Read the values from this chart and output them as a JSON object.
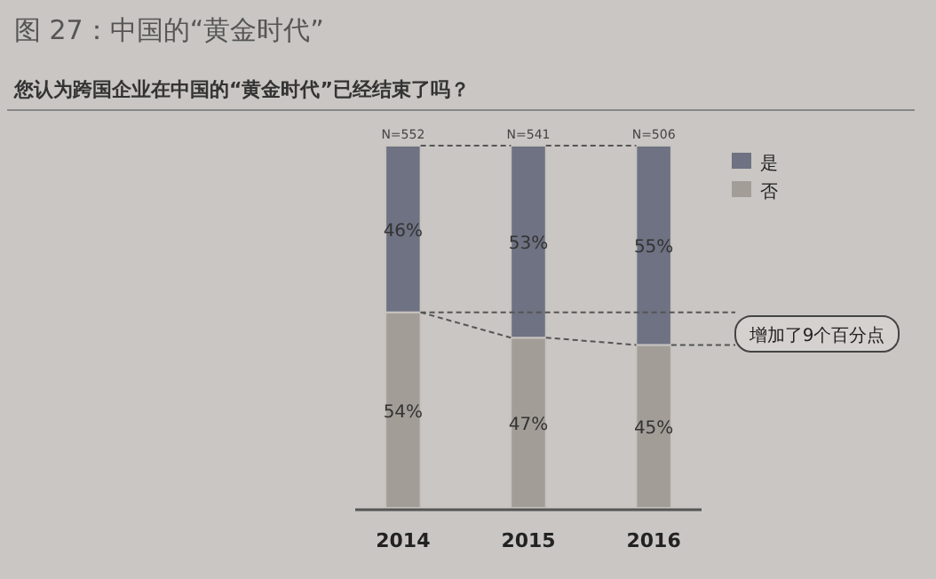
{
  "chart_data": {
    "type": "bar",
    "title": "图 27：中国的“黄金时代”",
    "subtitle": "您认为跨国企业在中国的“黄金时代”已经结束了吗？",
    "categories": [
      "2014",
      "2015",
      "2016"
    ],
    "stacked": true,
    "legend": "top right",
    "series": [
      {
        "name": "否",
        "color": "#a39d98",
        "values": [
          54,
          47,
          45
        ],
        "value_labels": [
          "54%",
          "47%",
          "45%"
        ]
      },
      {
        "name": "是",
        "color": "#6e7282",
        "values": [
          46,
          53,
          55
        ],
        "value_labels": [
          "46%",
          "53%",
          "55%"
        ]
      }
    ],
    "ref_lines": [
      {
        "axis": "y",
        "value": 54,
        "line_style": "dashed",
        "color": "#555555"
      },
      {
        "axis": "y",
        "value": 45,
        "line_style": "dashed",
        "color": "#555555"
      }
    ],
    "annotations": [
      {
        "text": "N=552",
        "x": "2014",
        "y": 100
      },
      {
        "text": "N=541",
        "x": "2015",
        "y": 100
      },
      {
        "text": "N=506",
        "x": "2016",
        "y": 100
      },
      "增加了9个百分点"
    ]
  }
}
